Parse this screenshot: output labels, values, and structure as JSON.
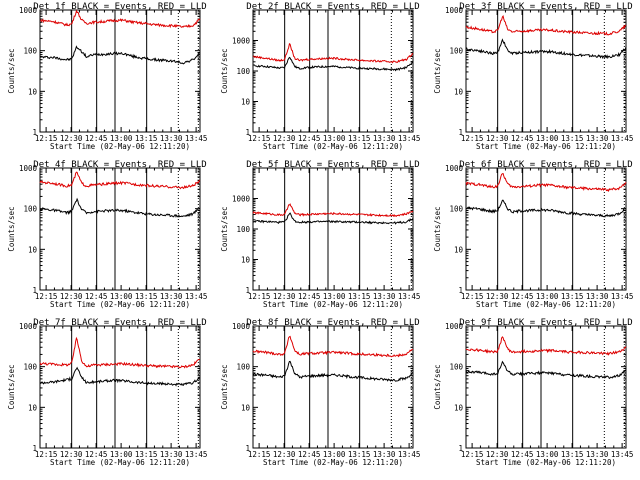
{
  "figure": {
    "x_tick_labels": [
      "12:15",
      "12:30",
      "12:45",
      "13:00",
      "13:15",
      "13:30",
      "13:45"
    ],
    "xlabel": "Start Time (02-May-06 12:11:20)",
    "ylabel": "Counts/sec",
    "y_tick_labels": [
      "1",
      "10",
      "100",
      "1000"
    ]
  },
  "chart_data": [
    {
      "type": "line",
      "title": "Det 1f BLACK = Events, RED = LLD",
      "xlabel": "Start Time (02-May-06 12:11:20)",
      "ylabel": "Counts/sec",
      "x_minutes": [
        0,
        8,
        16,
        19,
        22,
        25,
        28,
        32,
        38,
        44,
        50,
        56,
        62,
        68,
        74,
        80,
        86,
        92,
        96
      ],
      "ylim": [
        1,
        1000
      ],
      "yscale": "log",
      "markers": {
        "solid_minutes": [
          19,
          34,
          45,
          64
        ],
        "dotted_minutes": [
          83,
          95
        ]
      },
      "series": [
        {
          "name": "Events",
          "color": "black",
          "values": [
            70,
            68,
            60,
            62,
            125,
            95,
            70,
            80,
            82,
            85,
            85,
            72,
            65,
            60,
            58,
            55,
            50,
            60,
            90
          ]
        },
        {
          "name": "LLD",
          "color": "red",
          "values": [
            560,
            520,
            430,
            450,
            980,
            560,
            470,
            500,
            520,
            550,
            560,
            500,
            470,
            440,
            420,
            410,
            380,
            420,
            600
          ]
        }
      ]
    },
    {
      "type": "line",
      "title": "Det 2f BLACK = Events, RED = LLD",
      "xlabel": "Start Time (02-May-06 12:11:20)",
      "ylabel": "Counts/sec",
      "x_minutes": [
        0,
        8,
        16,
        19,
        22,
        25,
        28,
        32,
        38,
        44,
        50,
        56,
        62,
        68,
        74,
        80,
        86,
        92,
        96
      ],
      "ylim": [
        1,
        10000
      ],
      "yscale": "log",
      "markers": {
        "solid_minutes": [
          19,
          34,
          45,
          64
        ],
        "dotted_minutes": [
          83,
          95
        ]
      },
      "series": [
        {
          "name": "Events",
          "color": "black",
          "values": [
            150,
            140,
            125,
            130,
            300,
            140,
            120,
            130,
            135,
            140,
            140,
            130,
            125,
            120,
            118,
            115,
            110,
            130,
            200
          ]
        },
        {
          "name": "LLD",
          "color": "red",
          "values": [
            300,
            260,
            220,
            240,
            780,
            260,
            220,
            240,
            250,
            260,
            260,
            240,
            230,
            220,
            210,
            205,
            200,
            240,
            380
          ]
        }
      ]
    },
    {
      "type": "line",
      "title": "Det 3f BLACK = Events, RED = LLD",
      "xlabel": "Start Time (02-May-06 12:11:20)",
      "ylabel": "Counts/sec",
      "x_minutes": [
        0,
        8,
        16,
        19,
        22,
        25,
        28,
        32,
        38,
        44,
        50,
        56,
        62,
        68,
        74,
        80,
        86,
        92,
        96
      ],
      "ylim": [
        1,
        1000
      ],
      "yscale": "log",
      "markers": {
        "solid_minutes": [
          19,
          34,
          45,
          64
        ],
        "dotted_minutes": [
          83,
          95
        ]
      },
      "series": [
        {
          "name": "Events",
          "color": "black",
          "values": [
            110,
            100,
            85,
            90,
            190,
            100,
            85,
            90,
            92,
            95,
            95,
            88,
            82,
            78,
            75,
            72,
            70,
            80,
            120
          ]
        },
        {
          "name": "LLD",
          "color": "red",
          "values": [
            380,
            340,
            290,
            310,
            720,
            330,
            290,
            300,
            310,
            320,
            320,
            300,
            290,
            280,
            270,
            265,
            260,
            300,
            420
          ]
        }
      ]
    },
    {
      "type": "line",
      "title": "Det 4f BLACK = Events, RED = LLD",
      "xlabel": "Start Time (02-May-06 12:11:20)",
      "ylabel": "Counts/sec",
      "x_minutes": [
        0,
        8,
        16,
        19,
        22,
        25,
        28,
        32,
        38,
        44,
        50,
        56,
        62,
        68,
        74,
        80,
        86,
        92,
        96
      ],
      "ylim": [
        1,
        1000
      ],
      "yscale": "log",
      "markers": {
        "solid_minutes": [
          19,
          34,
          45,
          64
        ],
        "dotted_minutes": [
          83,
          95
        ]
      },
      "series": [
        {
          "name": "Events",
          "color": "black",
          "values": [
            100,
            92,
            80,
            85,
            170,
            95,
            78,
            85,
            88,
            90,
            90,
            82,
            76,
            72,
            70,
            68,
            65,
            75,
            110
          ]
        },
        {
          "name": "LLD",
          "color": "red",
          "values": [
            450,
            420,
            360,
            380,
            800,
            420,
            360,
            380,
            400,
            420,
            430,
            400,
            380,
            360,
            350,
            340,
            330,
            370,
            480
          ]
        }
      ]
    },
    {
      "type": "line",
      "title": "Det 5f BLACK = Events, RED = LLD",
      "xlabel": "Start Time (02-May-06 12:11:20)",
      "ylabel": "Counts/sec",
      "x_minutes": [
        0,
        8,
        16,
        19,
        22,
        25,
        28,
        32,
        38,
        44,
        50,
        56,
        62,
        68,
        74,
        80,
        86,
        92,
        96
      ],
      "ylim": [
        1,
        10000
      ],
      "yscale": "log",
      "markers": {
        "solid_minutes": [
          19,
          34,
          45,
          64
        ],
        "dotted_minutes": [
          83,
          95
        ]
      },
      "series": [
        {
          "name": "Events",
          "color": "black",
          "values": [
            180,
            175,
            165,
            170,
            330,
            180,
            165,
            170,
            172,
            175,
            175,
            170,
            168,
            165,
            160,
            160,
            158,
            170,
            220
          ]
        },
        {
          "name": "LLD",
          "color": "red",
          "values": [
            340,
            320,
            290,
            300,
            680,
            330,
            290,
            300,
            310,
            320,
            320,
            310,
            300,
            290,
            285,
            280,
            280,
            310,
            400
          ]
        }
      ]
    },
    {
      "type": "line",
      "title": "Det 6f BLACK = Events, RED = LLD",
      "xlabel": "Start Time (02-May-06 12:11:20)",
      "ylabel": "Counts/sec",
      "x_minutes": [
        0,
        8,
        16,
        19,
        22,
        25,
        28,
        32,
        38,
        44,
        50,
        56,
        62,
        68,
        74,
        80,
        86,
        92,
        96
      ],
      "ylim": [
        1,
        1000
      ],
      "yscale": "log",
      "markers": {
        "solid_minutes": [
          19,
          34,
          45,
          64
        ],
        "dotted_minutes": [
          83,
          95
        ]
      },
      "series": [
        {
          "name": "Events",
          "color": "black",
          "values": [
            105,
            98,
            85,
            90,
            160,
            100,
            82,
            88,
            90,
            92,
            92,
            85,
            78,
            74,
            70,
            68,
            66,
            76,
            105
          ]
        },
        {
          "name": "LLD",
          "color": "red",
          "values": [
            420,
            390,
            340,
            360,
            760,
            400,
            340,
            350,
            360,
            380,
            380,
            350,
            330,
            320,
            310,
            300,
            290,
            320,
            440
          ]
        }
      ]
    },
    {
      "type": "line",
      "title": "Det 7f BLACK = Events, RED = LLD",
      "xlabel": "Start Time (02-May-06 12:11:20)",
      "ylabel": "Counts/sec",
      "x_minutes": [
        0,
        8,
        16,
        19,
        22,
        25,
        28,
        32,
        38,
        44,
        50,
        56,
        62,
        68,
        74,
        80,
        86,
        92,
        96
      ],
      "ylim": [
        1,
        1000
      ],
      "yscale": "log",
      "markers": {
        "solid_minutes": [
          19,
          34,
          45,
          64
        ],
        "dotted_minutes": [
          83,
          95
        ]
      },
      "series": [
        {
          "name": "Events",
          "color": "black",
          "values": [
            40,
            42,
            48,
            50,
            95,
            55,
            40,
            42,
            44,
            46,
            45,
            42,
            40,
            38,
            38,
            37,
            36,
            40,
            55
          ]
        },
        {
          "name": "LLD",
          "color": "red",
          "values": [
            120,
            115,
            110,
            120,
            520,
            140,
            100,
            110,
            112,
            115,
            118,
            112,
            108,
            104,
            102,
            100,
            98,
            110,
            160
          ]
        }
      ]
    },
    {
      "type": "line",
      "title": "Det 8f BLACK = Events, RED = LLD",
      "xlabel": "Start Time (02-May-06 12:11:20)",
      "ylabel": "Counts/sec",
      "x_minutes": [
        0,
        8,
        16,
        19,
        22,
        25,
        28,
        32,
        38,
        44,
        50,
        56,
        62,
        68,
        74,
        80,
        86,
        92,
        96
      ],
      "ylim": [
        1,
        1000
      ],
      "yscale": "log",
      "markers": {
        "solid_minutes": [
          19,
          34,
          45,
          64
        ],
        "dotted_minutes": [
          83,
          95
        ]
      },
      "series": [
        {
          "name": "Events",
          "color": "black",
          "values": [
            65,
            62,
            55,
            60,
            140,
            70,
            55,
            58,
            60,
            62,
            62,
            58,
            55,
            52,
            50,
            48,
            47,
            52,
            70
          ]
        },
        {
          "name": "LLD",
          "color": "red",
          "values": [
            240,
            225,
            200,
            210,
            600,
            250,
            200,
            210,
            215,
            220,
            225,
            215,
            205,
            200,
            195,
            190,
            185,
            205,
            270
          ]
        }
      ]
    },
    {
      "type": "line",
      "title": "Det 9f BLACK = Events, RED = LLD",
      "xlabel": "Start Time (02-May-06 12:11:20)",
      "ylabel": "Counts/sec",
      "x_minutes": [
        0,
        8,
        16,
        19,
        22,
        25,
        28,
        32,
        38,
        44,
        50,
        56,
        62,
        68,
        74,
        80,
        86,
        92,
        96
      ],
      "ylim": [
        1,
        1000
      ],
      "yscale": "log",
      "markers": {
        "solid_minutes": [
          19,
          34,
          45,
          64
        ],
        "dotted_minutes": [
          83,
          95
        ]
      },
      "series": [
        {
          "name": "Events",
          "color": "black",
          "values": [
            75,
            72,
            65,
            68,
            130,
            78,
            64,
            66,
            68,
            70,
            70,
            66,
            62,
            60,
            58,
            56,
            55,
            60,
            80
          ]
        },
        {
          "name": "LLD",
          "color": "red",
          "values": [
            270,
            255,
            230,
            240,
            560,
            270,
            225,
            235,
            240,
            245,
            250,
            240,
            230,
            225,
            220,
            215,
            210,
            230,
            300
          ]
        }
      ]
    }
  ]
}
